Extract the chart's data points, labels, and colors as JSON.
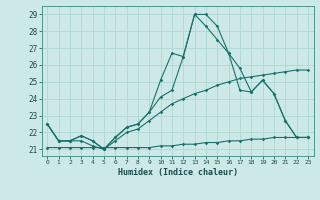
{
  "xlabel": "Humidex (Indice chaleur)",
  "ylabel": "",
  "xlim": [
    -0.5,
    23.5
  ],
  "ylim": [
    20.6,
    29.5
  ],
  "xticks": [
    0,
    1,
    2,
    3,
    4,
    5,
    6,
    7,
    8,
    9,
    10,
    11,
    12,
    13,
    14,
    15,
    16,
    17,
    18,
    19,
    20,
    21,
    22,
    23
  ],
  "yticks": [
    21,
    22,
    23,
    24,
    25,
    26,
    27,
    28,
    29
  ],
  "background_color": "#cce9e8",
  "grid_color": "#b0d8d6",
  "line_color": "#1a7068",
  "lines": [
    [
      22.5,
      21.5,
      21.5,
      21.5,
      21.2,
      21.0,
      21.7,
      22.3,
      22.5,
      23.2,
      25.1,
      26.7,
      26.5,
      29.0,
      29.0,
      28.3,
      26.7,
      25.8,
      24.4,
      25.1,
      24.3,
      22.7,
      21.7,
      21.7
    ],
    [
      21.1,
      21.1,
      21.1,
      21.1,
      21.1,
      21.1,
      21.1,
      21.1,
      21.1,
      21.1,
      21.2,
      21.2,
      21.3,
      21.3,
      21.4,
      21.4,
      21.5,
      21.5,
      21.6,
      21.6,
      21.7,
      21.7,
      21.7,
      21.7
    ],
    [
      22.5,
      21.5,
      21.5,
      21.8,
      21.5,
      21.0,
      21.7,
      22.3,
      22.5,
      23.2,
      24.1,
      24.5,
      26.5,
      29.0,
      28.3,
      27.5,
      26.7,
      24.5,
      24.4,
      25.1,
      24.3,
      22.7,
      21.7,
      21.7
    ],
    [
      22.5,
      21.5,
      21.5,
      21.8,
      21.5,
      21.0,
      21.5,
      22.0,
      22.2,
      22.7,
      23.2,
      23.7,
      24.0,
      24.3,
      24.5,
      24.8,
      25.0,
      25.2,
      25.3,
      25.4,
      25.5,
      25.6,
      25.7,
      25.7
    ]
  ]
}
